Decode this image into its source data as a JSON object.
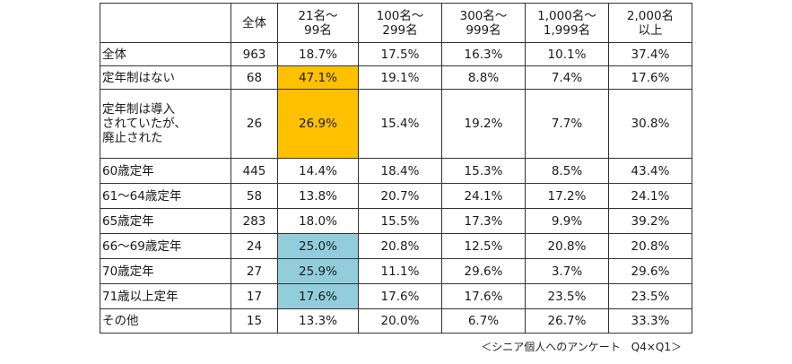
{
  "table": {
    "header": [
      "全体",
      "21名～\n99名",
      "100名～\n299名",
      "300名～\n999名",
      "1,000名～\n1,999名",
      "2,000名\n以上"
    ],
    "rows": [
      {
        "label": "全体",
        "cells": [
          "963",
          "18.7%",
          "17.5%",
          "16.3%",
          "10.1%",
          "37.4%"
        ]
      },
      {
        "label": "定年制はない",
        "cells": [
          "68",
          "47.1%",
          "19.1%",
          "8.8%",
          "7.4%",
          "17.6%"
        ]
      },
      {
        "label": "定年制は導入\nされていたが、\n廃止された",
        "cells": [
          "26",
          "26.9%",
          "15.4%",
          "19.2%",
          "7.7%",
          "30.8%"
        ]
      },
      {
        "label": "60歳定年",
        "cells": [
          "445",
          "14.4%",
          "18.4%",
          "15.3%",
          "8.5%",
          "43.4%"
        ]
      },
      {
        "label": "61～64歳定年",
        "cells": [
          "58",
          "13.8%",
          "20.7%",
          "24.1%",
          "17.2%",
          "24.1%"
        ]
      },
      {
        "label": "65歳定年",
        "cells": [
          "283",
          "18.0%",
          "15.5%",
          "17.3%",
          "9.9%",
          "39.2%"
        ]
      },
      {
        "label": "66～69歳定年",
        "cells": [
          "24",
          "25.0%",
          "20.8%",
          "12.5%",
          "20.8%",
          "20.8%"
        ]
      },
      {
        "label": "70歳定年",
        "cells": [
          "27",
          "25.9%",
          "11.1%",
          "29.6%",
          "3.7%",
          "29.6%"
        ]
      },
      {
        "label": "71歳以上定年",
        "cells": [
          "17",
          "17.6%",
          "17.6%",
          "17.6%",
          "23.5%",
          "23.5%"
        ]
      },
      {
        "label": "その他",
        "cells": [
          "15",
          "13.3%",
          "20.0%",
          "6.7%",
          "26.7%",
          "33.3%"
        ]
      }
    ],
    "highlights": [
      {
        "row": 1,
        "col": 1,
        "color": "#FFC000"
      },
      {
        "row": 2,
        "col": 1,
        "color": "#FFC000"
      },
      {
        "row": 6,
        "col": 1,
        "color": "#92CDDC"
      },
      {
        "row": 7,
        "col": 1,
        "color": "#92CDDC"
      },
      {
        "row": 8,
        "col": 1,
        "color": "#92CDDC"
      }
    ]
  },
  "caption": "＜シニア個人へのアンケート　Q4×Q1＞"
}
